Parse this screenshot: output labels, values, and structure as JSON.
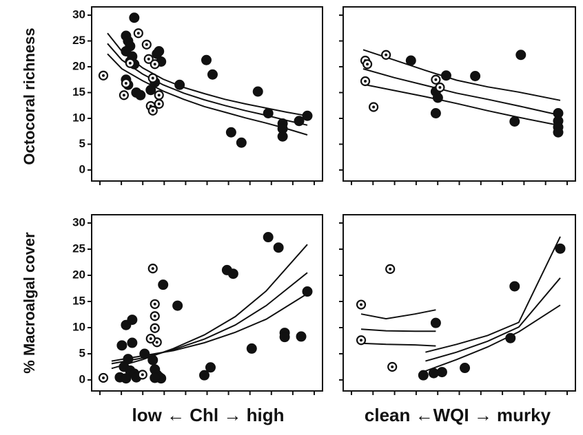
{
  "chart_data": [
    {
      "type": "scatter",
      "panel": "top-left",
      "ylabel": "Octocoral richness",
      "ylim": [
        0,
        30
      ],
      "yticks": [
        "0",
        "5",
        "10",
        "15",
        "20",
        "25",
        "30"
      ],
      "xlim": [
        0,
        10
      ],
      "open_points": [
        [
          0.1,
          18.3
        ],
        [
          1.1,
          14.5
        ],
        [
          1.8,
          26.5
        ],
        [
          2.2,
          24.3
        ],
        [
          2.3,
          21.5
        ],
        [
          2.5,
          17.8
        ],
        [
          2.6,
          20.5
        ],
        [
          2.8,
          14.5
        ],
        [
          2.8,
          12.8
        ],
        [
          2.4,
          12.4
        ],
        [
          2.5,
          11.5
        ],
        [
          1.2,
          16.8
        ],
        [
          1.4,
          20.7
        ]
      ],
      "filled_points": [
        [
          1.2,
          26.0
        ],
        [
          1.3,
          25.0
        ],
        [
          1.4,
          24.0
        ],
        [
          1.2,
          23.0
        ],
        [
          1.5,
          22.0
        ],
        [
          1.4,
          21.0
        ],
        [
          1.6,
          20.5
        ],
        [
          1.2,
          17.5
        ],
        [
          1.3,
          16.5
        ],
        [
          1.6,
          29.5
        ],
        [
          1.7,
          15.0
        ],
        [
          1.9,
          14.5
        ],
        [
          2.4,
          15.5
        ],
        [
          2.6,
          17.0
        ],
        [
          2.7,
          22.5
        ],
        [
          2.9,
          21.0
        ],
        [
          2.8,
          23.0
        ],
        [
          3.8,
          16.5
        ],
        [
          5.1,
          21.3
        ],
        [
          5.4,
          18.5
        ],
        [
          6.3,
          7.3
        ],
        [
          6.8,
          5.3
        ],
        [
          7.6,
          15.2
        ],
        [
          8.1,
          11.0
        ],
        [
          8.8,
          9.0
        ],
        [
          8.8,
          8.0
        ],
        [
          8.8,
          6.5
        ],
        [
          9.6,
          9.5
        ],
        [
          10.0,
          10.5
        ]
      ],
      "fit_line": {
        "x": [
          0.3,
          1,
          2,
          3,
          4,
          5,
          6,
          7,
          8,
          9,
          10
        ],
        "y": [
          24.5,
          21.3,
          18.6,
          16.5,
          14.9,
          13.6,
          12.5,
          11.5,
          10.6,
          9.6,
          8.7
        ]
      },
      "ci_upper": {
        "x": [
          0.3,
          1,
          2,
          3,
          4,
          5,
          6,
          7,
          8,
          9,
          10
        ],
        "y": [
          26.5,
          23.0,
          19.8,
          17.6,
          16.0,
          14.8,
          13.7,
          12.8,
          12.0,
          11.2,
          10.5
        ]
      },
      "ci_lower": {
        "x": [
          0.3,
          1,
          2,
          3,
          4,
          5,
          6,
          7,
          8,
          9,
          10
        ],
        "y": [
          22.5,
          19.6,
          17.3,
          15.3,
          13.7,
          12.3,
          11.2,
          10.1,
          9.1,
          8.0,
          6.8
        ]
      }
    },
    {
      "type": "scatter",
      "panel": "top-right",
      "ylim": [
        0,
        30
      ],
      "xlim": [
        0,
        10
      ],
      "open_points": [
        [
          0.6,
          21.2
        ],
        [
          0.7,
          20.5
        ],
        [
          0.6,
          17.2
        ],
        [
          1.0,
          12.2
        ],
        [
          1.6,
          22.3
        ],
        [
          4.0,
          17.5
        ],
        [
          4.2,
          16.0
        ]
      ],
      "filled_points": [
        [
          2.8,
          21.2
        ],
        [
          4.0,
          11.0
        ],
        [
          4.0,
          15.2
        ],
        [
          4.1,
          14.0
        ],
        [
          4.5,
          18.3
        ],
        [
          5.9,
          18.2
        ],
        [
          7.8,
          9.4
        ],
        [
          8.1,
          22.3
        ],
        [
          9.9,
          11.0
        ],
        [
          9.9,
          9.5
        ],
        [
          9.9,
          8.3
        ],
        [
          9.9,
          7.3
        ]
      ],
      "fit_line": {
        "x": [
          0.5,
          2,
          3.5,
          5,
          6.5,
          8,
          10
        ],
        "y": [
          19.6,
          17.9,
          16.4,
          14.9,
          13.7,
          12.4,
          10.6
        ]
      },
      "ci_upper": {
        "x": [
          0.5,
          2,
          3.5,
          5,
          6.5,
          8,
          10
        ],
        "y": [
          23.3,
          21.3,
          19.3,
          17.4,
          16.1,
          15.1,
          13.5
        ]
      },
      "ci_lower": {
        "x": [
          0.5,
          2,
          3.5,
          5,
          6.5,
          8,
          10
        ],
        "y": [
          16.6,
          15.4,
          14.2,
          12.9,
          11.5,
          10.2,
          8.6
        ]
      }
    },
    {
      "type": "scatter",
      "panel": "bottom-left",
      "ylabel": "% Macroalgal cover",
      "ylim": [
        0,
        30
      ],
      "yticks": [
        "0",
        "5",
        "10",
        "15",
        "20",
        "25",
        "30"
      ],
      "xlim": [
        0,
        10
      ],
      "open_points": [
        [
          0.1,
          0.4
        ],
        [
          2.5,
          21.3
        ],
        [
          2.6,
          14.5
        ],
        [
          2.6,
          12.2
        ],
        [
          2.6,
          9.9
        ],
        [
          2.7,
          7.2
        ],
        [
          2.4,
          7.9
        ],
        [
          2.0,
          1.0
        ]
      ],
      "filled_points": [
        [
          1.2,
          10.5
        ],
        [
          1.5,
          11.5
        ],
        [
          1.0,
          6.6
        ],
        [
          1.5,
          7.1
        ],
        [
          1.3,
          4.0
        ],
        [
          1.1,
          2.5
        ],
        [
          1.4,
          1.8
        ],
        [
          1.6,
          1.2
        ],
        [
          0.9,
          0.5
        ],
        [
          1.2,
          0.3
        ],
        [
          1.7,
          0.5
        ],
        [
          2.1,
          5.0
        ],
        [
          2.5,
          3.8
        ],
        [
          2.6,
          2.0
        ],
        [
          2.7,
          1.0
        ],
        [
          2.8,
          0.6
        ],
        [
          2.9,
          0.3
        ],
        [
          2.6,
          0.4
        ],
        [
          3.0,
          18.2
        ],
        [
          3.7,
          14.2
        ],
        [
          5.0,
          0.9
        ],
        [
          5.3,
          2.4
        ],
        [
          6.1,
          21.0
        ],
        [
          6.4,
          20.3
        ],
        [
          7.3,
          6.0
        ],
        [
          8.1,
          27.3
        ],
        [
          8.6,
          25.3
        ],
        [
          8.9,
          9.0
        ],
        [
          8.9,
          8.2
        ],
        [
          9.7,
          8.3
        ],
        [
          10.0,
          16.9
        ]
      ],
      "fit_line": {
        "x": [
          0.5,
          2,
          3.5,
          5,
          6.5,
          8,
          10
        ],
        "y": [
          3.1,
          4.2,
          5.8,
          7.8,
          10.5,
          14.2,
          20.5
        ]
      },
      "ci_upper": {
        "x": [
          0.5,
          2,
          3.5,
          5,
          6.5,
          8,
          10
        ],
        "y": [
          2.2,
          3.9,
          6.0,
          8.6,
          12.1,
          17.0,
          25.9
        ]
      },
      "ci_lower": {
        "x": [
          0.5,
          2,
          3.5,
          5,
          6.5,
          8,
          10
        ],
        "y": [
          3.6,
          4.6,
          5.6,
          7.1,
          9.1,
          11.6,
          16.5
        ]
      }
    },
    {
      "type": "scatter",
      "panel": "bottom-right",
      "ylim": [
        0,
        30
      ],
      "xlim": [
        0,
        10
      ],
      "open_points": [
        [
          0.4,
          14.4
        ],
        [
          0.4,
          7.6
        ],
        [
          1.8,
          21.2
        ],
        [
          1.9,
          2.5
        ]
      ],
      "filled_points": [
        [
          3.4,
          0.9
        ],
        [
          3.9,
          1.3
        ],
        [
          4.0,
          10.9
        ],
        [
          4.3,
          1.5
        ],
        [
          5.4,
          2.3
        ],
        [
          7.6,
          8.0
        ],
        [
          7.8,
          17.9
        ],
        [
          10.0,
          25.1
        ]
      ],
      "fit_line": {
        "x": [
          3.5,
          5,
          6.5,
          8,
          10
        ],
        "y": [
          3.6,
          5.3,
          7.4,
          10.1,
          19.5
        ]
      },
      "ci_upper": {
        "x": [
          3.5,
          5,
          6.5,
          8,
          10
        ],
        "y": [
          5.3,
          6.8,
          8.5,
          11.0,
          27.4
        ]
      },
      "ci_lower": {
        "x": [
          3.5,
          5,
          6.5,
          8,
          10
        ],
        "y": [
          1.7,
          3.9,
          6.3,
          9.2,
          14.3
        ]
      },
      "control_fit": {
        "x": [
          0.4,
          1.6,
          3.0,
          4.0
        ],
        "y": [
          9.7,
          9.4,
          9.3,
          9.3
        ]
      },
      "control_upper": {
        "x": [
          0.4,
          1.6,
          3.0,
          4.0
        ],
        "y": [
          12.6,
          11.7,
          12.6,
          13.4
        ]
      },
      "control_lower": {
        "x": [
          0.4,
          1.6,
          3.0,
          4.0
        ],
        "y": [
          7.0,
          6.8,
          6.7,
          6.5
        ]
      }
    }
  ],
  "xlabels": {
    "left": "low ←   Chl   → high",
    "right": "clean ←WQI → murky"
  }
}
